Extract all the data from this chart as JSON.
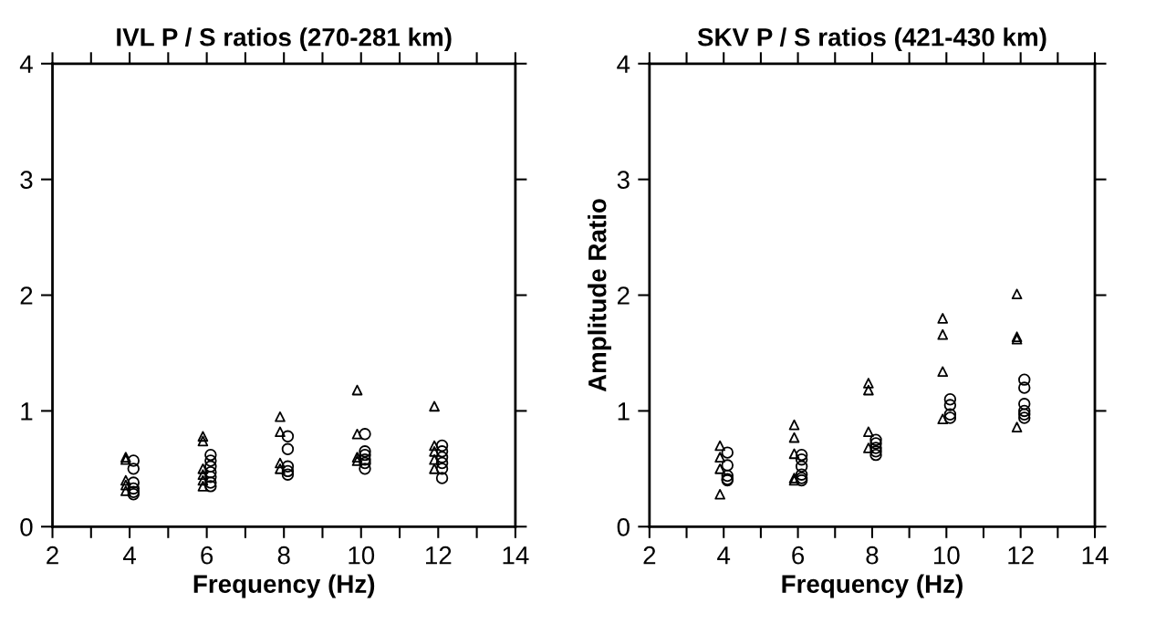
{
  "chart_data": [
    {
      "type": "scatter",
      "title": "IVL P / S ratios (270-281 km)",
      "xlabel": "Frequency (Hz)",
      "xlim": [
        2,
        14
      ],
      "xticks": [
        2,
        {
          "value": 3,
          "label": null
        },
        4,
        {
          "value": 5,
          "label": null
        },
        6,
        {
          "value": 7,
          "label": null
        },
        8,
        {
          "value": 9,
          "label": null
        },
        10,
        {
          "value": 11,
          "label": null
        },
        12,
        {
          "value": 13,
          "label": null
        },
        14
      ],
      "ylim": [
        0,
        4
      ],
      "yticks": [
        0,
        1,
        2,
        3,
        4
      ],
      "grid": false,
      "legend": false,
      "series": [
        {
          "color": "#000000",
          "marker": "triangle",
          "x": [
            3.9,
            3.9,
            3.9,
            3.9,
            3.9,
            5.9,
            5.9,
            5.9,
            5.9,
            5.9,
            5.9,
            7.9,
            7.9,
            7.9,
            7.9,
            9.9,
            9.9,
            9.9,
            9.9,
            11.9,
            11.9,
            11.9,
            11.9,
            11.9
          ],
          "values": [
            0.6,
            0.58,
            0.4,
            0.36,
            0.31,
            0.78,
            0.74,
            0.5,
            0.45,
            0.4,
            0.35,
            0.95,
            0.82,
            0.55,
            0.5,
            1.18,
            0.8,
            0.6,
            0.57,
            1.04,
            0.7,
            0.65,
            0.58,
            0.5
          ]
        },
        {
          "color": "#000000",
          "marker": "circle",
          "x": [
            4.1,
            4.1,
            4.1,
            4.1,
            4.1,
            4.1,
            6.1,
            6.1,
            6.1,
            6.1,
            6.1,
            6.1,
            6.1,
            8.1,
            8.1,
            8.1,
            8.1,
            8.1,
            10.1,
            10.1,
            10.1,
            10.1,
            10.1,
            10.1,
            12.1,
            12.1,
            12.1,
            12.1,
            12.1,
            12.1
          ],
          "values": [
            0.57,
            0.5,
            0.38,
            0.33,
            0.3,
            0.28,
            0.62,
            0.57,
            0.52,
            0.47,
            0.43,
            0.38,
            0.35,
            0.78,
            0.67,
            0.52,
            0.48,
            0.45,
            0.8,
            0.65,
            0.62,
            0.58,
            0.55,
            0.5,
            0.7,
            0.65,
            0.6,
            0.55,
            0.5,
            0.42
          ]
        }
      ]
    },
    {
      "type": "scatter",
      "title": "SKV P / S ratios (421-430 km)",
      "xlabel": "Frequency (Hz)",
      "ylabel": "Amplitude Ratio",
      "xlim": [
        2,
        14
      ],
      "xticks": [
        2,
        {
          "value": 3,
          "label": null
        },
        4,
        {
          "value": 5,
          "label": null
        },
        6,
        {
          "value": 7,
          "label": null
        },
        8,
        {
          "value": 9,
          "label": null
        },
        10,
        {
          "value": 11,
          "label": null
        },
        12,
        {
          "value": 13,
          "label": null
        },
        14
      ],
      "ylim": [
        0,
        4
      ],
      "yticks": [
        0,
        1,
        2,
        3,
        4
      ],
      "grid": false,
      "legend": false,
      "series": [
        {
          "color": "#000000",
          "marker": "triangle",
          "x": [
            3.9,
            3.9,
            3.9,
            3.9,
            5.9,
            5.9,
            5.9,
            5.9,
            5.9,
            7.9,
            7.9,
            7.9,
            7.9,
            9.9,
            9.9,
            9.9,
            9.9,
            11.9,
            11.9,
            11.9,
            11.9
          ],
          "values": [
            0.7,
            0.6,
            0.5,
            0.28,
            0.88,
            0.77,
            0.63,
            0.42,
            0.4,
            1.24,
            1.18,
            0.82,
            0.68,
            1.8,
            1.66,
            1.34,
            0.93,
            2.01,
            1.64,
            1.62,
            0.86
          ]
        },
        {
          "color": "#000000",
          "marker": "circle",
          "x": [
            4.1,
            4.1,
            4.1,
            4.1,
            4.1,
            6.1,
            6.1,
            6.1,
            6.1,
            6.1,
            6.1,
            8.1,
            8.1,
            8.1,
            8.1,
            8.1,
            10.1,
            10.1,
            10.1,
            10.1,
            12.1,
            12.1,
            12.1,
            12.1,
            12.1,
            12.1
          ],
          "values": [
            0.64,
            0.53,
            0.44,
            0.41,
            0.4,
            0.62,
            0.58,
            0.52,
            0.45,
            0.42,
            0.4,
            0.75,
            0.72,
            0.68,
            0.65,
            0.62,
            1.1,
            1.05,
            0.97,
            0.94,
            1.27,
            1.2,
            1.06,
            1.0,
            0.97,
            0.94
          ]
        }
      ]
    }
  ]
}
